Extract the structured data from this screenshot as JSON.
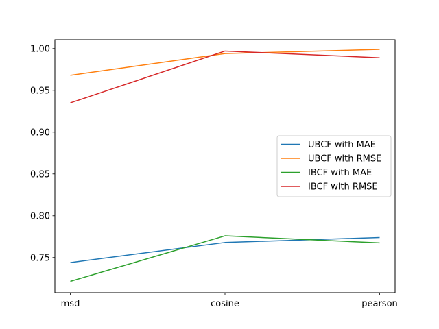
{
  "chart_data": {
    "type": "line",
    "categories": [
      "msd",
      "cosine",
      "pearson"
    ],
    "title": "",
    "xlabel": "",
    "ylabel": "",
    "ylim": [
      0.708,
      1.0105
    ],
    "yticks": [
      0.75,
      0.8,
      0.85,
      0.9,
      0.95,
      1.0
    ],
    "ytick_labels": [
      "0.75",
      "0.80",
      "0.85",
      "0.90",
      "0.95",
      "1.00"
    ],
    "grid": false,
    "legend_position": "center-right",
    "series": [
      {
        "name": "UBCF with MAE",
        "color": "#1f77b4",
        "values": [
          0.744,
          0.768,
          0.774
        ]
      },
      {
        "name": "UBCF with RMSE",
        "color": "#ff7f0e",
        "values": [
          0.968,
          0.994,
          0.999
        ]
      },
      {
        "name": "IBCF with MAE",
        "color": "#2ca02c",
        "values": [
          0.7215,
          0.776,
          0.7675
        ]
      },
      {
        "name": "IBCF with RMSE",
        "color": "#d62728",
        "values": [
          0.935,
          0.997,
          0.989
        ]
      }
    ]
  }
}
